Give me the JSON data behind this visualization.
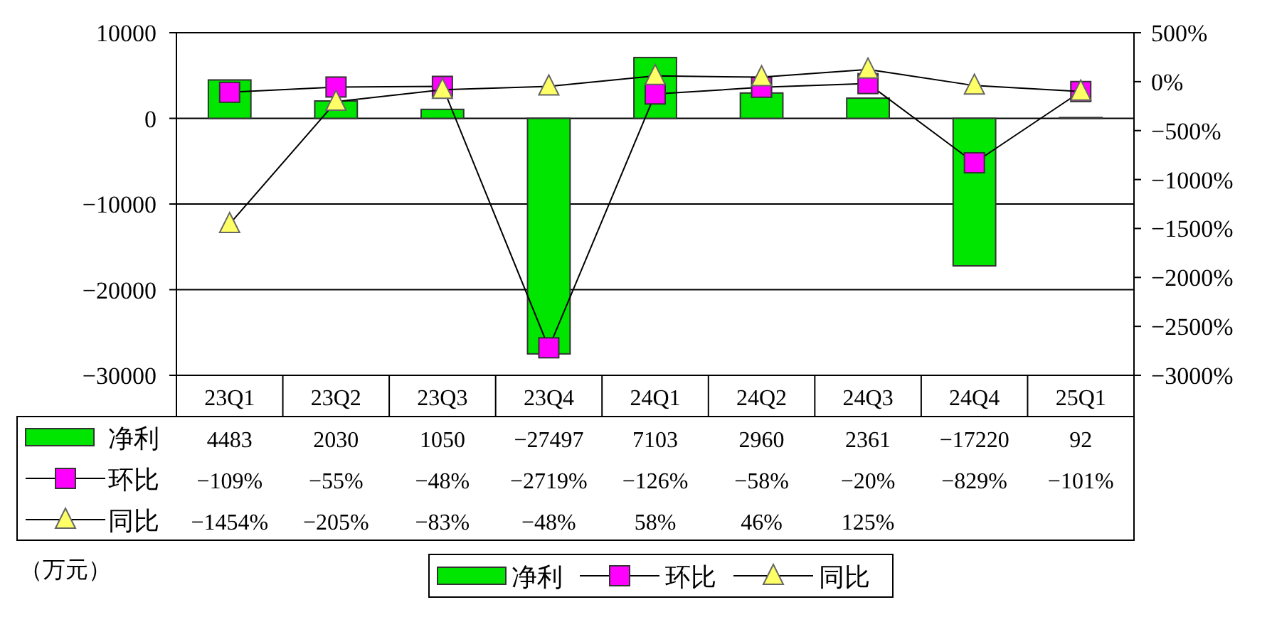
{
  "chart_data": {
    "type": "bar",
    "categories": [
      "23Q1",
      "23Q2",
      "23Q3",
      "23Q4",
      "24Q1",
      "24Q2",
      "24Q3",
      "24Q4",
      "25Q1"
    ],
    "series": [
      {
        "name": "净利",
        "color": "#00e600",
        "values": [
          4483,
          2030,
          1050,
          -27497,
          7103,
          2960,
          2361,
          -17220,
          92
        ],
        "value_labels": [
          "4483",
          "2030",
          "1050",
          "−27497",
          "7103",
          "2960",
          "2361",
          "−17220",
          "92"
        ]
      },
      {
        "name": "环比",
        "type": "line",
        "axis": "y2",
        "marker": "square",
        "color": "#ff00ff",
        "values": [
          -109,
          -55,
          -48,
          -2719,
          -126,
          -58,
          -20,
          -829,
          -101
        ],
        "value_labels": [
          "−109%",
          "−55%",
          "−48%",
          "−2719%",
          "−126%",
          "−58%",
          "−20%",
          "−829%",
          "−101%"
        ]
      },
      {
        "name": "同比",
        "type": "line",
        "axis": "y2",
        "marker": "triangle",
        "color": "#ffff66",
        "values": [
          -1454,
          -205,
          -83,
          -48,
          58,
          46,
          125,
          -40,
          -100
        ],
        "value_labels": [
          "−1454%",
          "−205%",
          "−83%",
          "−48%",
          "58%",
          "46%",
          "125%",
          null,
          null
        ]
      }
    ],
    "ylim": [
      -30000,
      10000
    ],
    "yticks": [
      -30000,
      -20000,
      -10000,
      0,
      10000
    ],
    "y2lim": [
      -3000,
      500
    ],
    "y2ticks": [
      {
        "value": -3000,
        "label": "−3000%"
      },
      {
        "value": -2500,
        "label": "−2500%"
      },
      {
        "value": -2000,
        "label": "−2000%"
      },
      {
        "value": -1500,
        "label": "−1500%"
      },
      {
        "value": -1000,
        "label": "−1000%"
      },
      {
        "value": -500,
        "label": "−500%"
      },
      {
        "value": 0,
        "label": "0%"
      },
      {
        "value": 500,
        "label": "500%"
      }
    ],
    "grid": "y",
    "legend": "bottom",
    "annotations": [
      "（万元）"
    ]
  }
}
